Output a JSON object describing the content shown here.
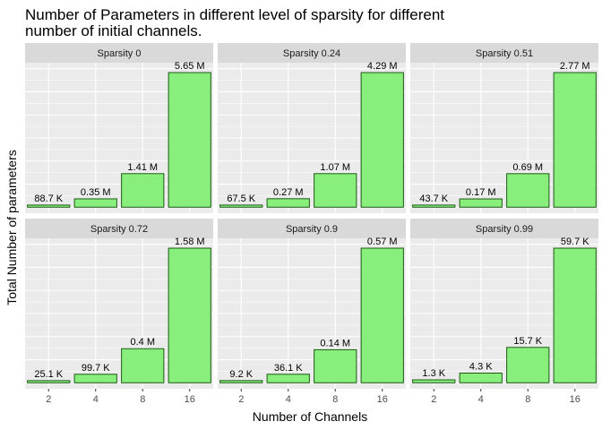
{
  "chart_data": {
    "type": "bar",
    "title_lines": [
      "Number of Parameters in different level of sparsity for different",
      "number of initial channels."
    ],
    "xlabel": "Number of Channels",
    "ylabel": "Total Number of parameters",
    "categories": [
      "2",
      "4",
      "8",
      "16"
    ],
    "bar_fill": "#88ee7c",
    "bar_stroke": "#1e5a16",
    "panel_bg": "#ebebeb",
    "strip_bg": "#d9d9d9",
    "grid_color": "#ffffff",
    "y_scale": "free",
    "y_tick_labels_shown": false,
    "facets": [
      {
        "label": "Sparsity 0",
        "values": [
          88700,
          350000,
          1410000,
          5650000
        ],
        "value_labels": [
          "88.7 K",
          "0.35 M",
          "1.41 M",
          "5.65 M"
        ]
      },
      {
        "label": "Sparsity 0.24",
        "values": [
          67500,
          270000,
          1070000,
          4290000
        ],
        "value_labels": [
          "67.5 K",
          "0.27 M",
          "1.07 M",
          "4.29 M"
        ]
      },
      {
        "label": "Sparsity 0.51",
        "values": [
          43700,
          170000,
          690000,
          2770000
        ],
        "value_labels": [
          "43.7 K",
          "0.17 M",
          "0.69 M",
          "2.77 M"
        ]
      },
      {
        "label": "Sparsity 0.72",
        "values": [
          25100,
          99700,
          400000,
          1580000
        ],
        "value_labels": [
          "25.1 K",
          "99.7 K",
          "0.4 M",
          "1.58 M"
        ]
      },
      {
        "label": "Sparsity 0.9",
        "values": [
          9200,
          36100,
          140000,
          570000
        ],
        "value_labels": [
          "9.2 K",
          "36.1 K",
          "0.14 M",
          "0.57 M"
        ]
      },
      {
        "label": "Sparsity 0.99",
        "values": [
          1300,
          4300,
          15700,
          59700
        ],
        "value_labels": [
          "1.3 K",
          "4.3 K",
          "15.7 K",
          "59.7 K"
        ]
      }
    ]
  }
}
